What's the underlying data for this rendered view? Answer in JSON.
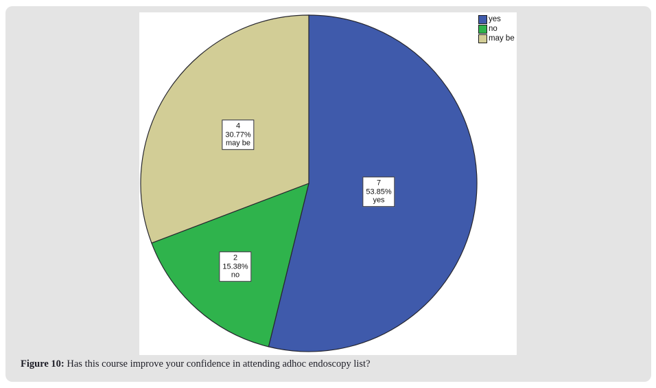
{
  "figure": {
    "caption_prefix": "Figure 10:",
    "caption_text": " Has this course improve your confidence in attending adhoc endoscopy list?"
  },
  "chart_data": {
    "type": "pie",
    "title": "",
    "categories": [
      "yes",
      "no",
      "may be"
    ],
    "values": [
      7,
      2,
      4
    ],
    "percents": [
      "53.85%",
      "15.38%",
      "30.77%"
    ],
    "colors": [
      "#3f5aab",
      "#2fb34c",
      "#d2cd96"
    ],
    "outline_color": "#26262e",
    "start_angle_deg": 0,
    "direction": "clockwise",
    "legend_position": "top-right",
    "label_radius_frac": [
      0.42,
      0.66,
      0.51
    ],
    "background": "#ffffff",
    "card_background": "#e4e4e4"
  }
}
